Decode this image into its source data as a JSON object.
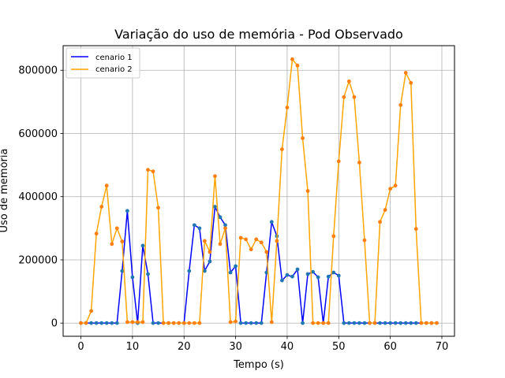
{
  "chart_data": {
    "type": "line",
    "title": "Variação do uso de memória - Pod Observado",
    "xlabel": "Tempo (s)",
    "ylabel": "Uso de memória",
    "xlim": [
      -3.45,
      72.45
    ],
    "ylim": [
      -41800,
      877800
    ],
    "xticks": [
      0,
      10,
      20,
      30,
      40,
      50,
      60,
      70
    ],
    "yticks": [
      0,
      200000,
      400000,
      600000,
      800000
    ],
    "ytick_labels": [
      "0",
      "200000",
      "400000",
      "600000",
      "800000"
    ],
    "grid": true,
    "legend_position": "top-left",
    "x": [
      0,
      1,
      2,
      3,
      4,
      5,
      6,
      7,
      8,
      9,
      10,
      11,
      12,
      13,
      14,
      15,
      16,
      17,
      18,
      19,
      20,
      21,
      22,
      23,
      24,
      25,
      26,
      27,
      28,
      29,
      30,
      31,
      32,
      33,
      34,
      35,
      36,
      37,
      38,
      39,
      40,
      41,
      42,
      43,
      44,
      45,
      46,
      47,
      48,
      49,
      50,
      51,
      52,
      53,
      54,
      55,
      56,
      57,
      58,
      59,
      60,
      61,
      62,
      63,
      64,
      65,
      66,
      67,
      68,
      69
    ],
    "series": [
      {
        "name": "cenario 1",
        "color": "#0000ff",
        "marker_color": "#1f77b4",
        "values": [
          0,
          0,
          0,
          0,
          0,
          0,
          0,
          0,
          165000,
          355000,
          145000,
          0,
          245000,
          155000,
          0,
          0,
          0,
          0,
          0,
          0,
          0,
          165000,
          310000,
          300000,
          165000,
          195000,
          368000,
          335000,
          310000,
          160000,
          180000,
          0,
          0,
          0,
          0,
          0,
          160000,
          320000,
          275000,
          135000,
          152000,
          147000,
          170000,
          0,
          155000,
          162000,
          145000,
          0,
          147000,
          160000,
          150000,
          0,
          0,
          0,
          0,
          0,
          0,
          0,
          0,
          0,
          0,
          0,
          0,
          0,
          0,
          0,
          0,
          0,
          0,
          0
        ]
      },
      {
        "name": "cenario 2",
        "color": "#ffa500",
        "marker_color": "#ff7f0e",
        "values": [
          0,
          0,
          38000,
          283000,
          368000,
          435000,
          250000,
          300000,
          258000,
          3000,
          3000,
          3000,
          3000,
          485000,
          480000,
          365000,
          0,
          0,
          0,
          0,
          0,
          0,
          0,
          0,
          260000,
          225000,
          465000,
          250000,
          300000,
          3000,
          5000,
          270000,
          265000,
          233000,
          265000,
          255000,
          225000,
          3000,
          260000,
          550000,
          682000,
          835000,
          815000,
          585000,
          418000,
          0,
          0,
          0,
          0,
          275000,
          512000,
          715000,
          765000,
          715000,
          508000,
          262000,
          0,
          0,
          320000,
          358000,
          425000,
          435000,
          690000,
          792000,
          760000,
          298000,
          0,
          0,
          0,
          0
        ]
      }
    ]
  }
}
